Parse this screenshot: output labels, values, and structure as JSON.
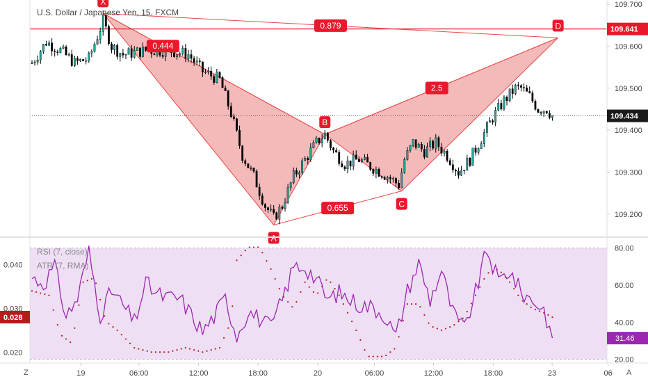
{
  "symbol_title": "U.S. Dollar / Japanese Yen, 15, FXCM",
  "price_axis_ticks": [
    "109.700",
    "109.600",
    "109.500",
    "109.400",
    "109.300",
    "109.200"
  ],
  "price_axis_values": [
    109.7,
    109.6,
    109.5,
    109.4,
    109.3,
    109.2
  ],
  "time_axis_labels": [
    "19",
    "06:00",
    "12:00",
    "18:00",
    "20",
    "06:00",
    "12:00",
    "18:00",
    "23",
    "06"
  ],
  "corner_labels": {
    "left": "Z",
    "right": "A"
  },
  "last_price_label": "109.434",
  "d_level_label": "109.641",
  "rsi_legend": "RSI (7, close)",
  "atr_legend": "ATR (7, RMA)",
  "rsi_axis_ticks": [
    "80.00",
    "60.00",
    "40.00",
    "20.00"
  ],
  "rsi_axis_values": [
    80,
    60,
    40,
    20
  ],
  "rsi_last_label": "31.46",
  "atr_axis_ticks": [
    "0.040",
    "0.030",
    "0.020"
  ],
  "atr_axis_values": [
    0.04,
    0.03,
    0.02
  ],
  "atr_last_label": "0.028",
  "colors": {
    "bull": "#26a69a",
    "pattern_fill": "#f0a0a0",
    "pattern_line": "#e84848",
    "label_bg": "#e8192c",
    "rsi_line": "#9c27b0",
    "rsi_band": "#e8d4f0",
    "atr_dots": "#b71c1c",
    "axis_text": "#444444"
  },
  "pattern": {
    "points": [
      {
        "label": "X",
        "time": 25,
        "price": 109.678
      },
      {
        "label": "A",
        "time": 85,
        "price": 109.174
      },
      {
        "label": "B",
        "time": 103,
        "price": 109.39
      },
      {
        "label": "C",
        "time": 130,
        "price": 109.255
      },
      {
        "label": "D",
        "time": 185,
        "price": 109.62
      }
    ],
    "ratios": [
      {
        "text": "0.879",
        "between": [
          "X",
          "D"
        ]
      },
      {
        "text": "0.444",
        "between": [
          "X",
          "B"
        ]
      },
      {
        "text": "0.655",
        "between": [
          "A",
          "C"
        ]
      },
      {
        "text": "2.5",
        "between": [
          "B",
          "D"
        ]
      }
    ]
  },
  "chart_data": {
    "type": "candlestick",
    "title": "U.S. Dollar / Japanese Yen, 15, FXCM",
    "price_ylim": [
      109.15,
      109.71
    ],
    "horizontal_level": 109.641,
    "last_close": 109.434,
    "ohlc_anchor_closes": [
      [
        0,
        109.56
      ],
      [
        5,
        109.61
      ],
      [
        10,
        109.59
      ],
      [
        15,
        109.56
      ],
      [
        20,
        109.57
      ],
      [
        25,
        109.66
      ],
      [
        28,
        109.6
      ],
      [
        32,
        109.58
      ],
      [
        40,
        109.59
      ],
      [
        48,
        109.59
      ],
      [
        55,
        109.58
      ],
      [
        60,
        109.54
      ],
      [
        66,
        109.52
      ],
      [
        70,
        109.44
      ],
      [
        74,
        109.34
      ],
      [
        78,
        109.29
      ],
      [
        82,
        109.22
      ],
      [
        85,
        109.19
      ],
      [
        88,
        109.22
      ],
      [
        92,
        109.29
      ],
      [
        96,
        109.33
      ],
      [
        100,
        109.37
      ],
      [
        103,
        109.39
      ],
      [
        106,
        109.35
      ],
      [
        110,
        109.32
      ],
      [
        115,
        109.33
      ],
      [
        120,
        109.31
      ],
      [
        125,
        109.29
      ],
      [
        129,
        109.27
      ],
      [
        131,
        109.33
      ],
      [
        134,
        109.37
      ],
      [
        138,
        109.35
      ],
      [
        142,
        109.37
      ],
      [
        146,
        109.34
      ],
      [
        150,
        109.3
      ],
      [
        154,
        109.33
      ],
      [
        158,
        109.38
      ],
      [
        162,
        109.43
      ],
      [
        166,
        109.47
      ],
      [
        170,
        109.5
      ],
      [
        172,
        109.5
      ],
      [
        175,
        109.48
      ],
      [
        178,
        109.45
      ],
      [
        181,
        109.45
      ],
      [
        183,
        109.434
      ]
    ],
    "rsi": {
      "name": "RSI (7, close)",
      "ylim": [
        18,
        84
      ],
      "band": [
        20,
        80
      ],
      "last": 31.46,
      "anchors": [
        [
          0,
          64
        ],
        [
          4,
          61
        ],
        [
          8,
          70
        ],
        [
          12,
          43
        ],
        [
          16,
          53
        ],
        [
          20,
          78
        ],
        [
          24,
          44
        ],
        [
          28,
          57
        ],
        [
          32,
          49
        ],
        [
          36,
          40
        ],
        [
          40,
          61
        ],
        [
          44,
          55
        ],
        [
          48,
          53
        ],
        [
          52,
          53
        ],
        [
          56,
          44
        ],
        [
          60,
          35
        ],
        [
          64,
          43
        ],
        [
          68,
          53
        ],
        [
          72,
          33
        ],
        [
          76,
          46
        ],
        [
          80,
          42
        ],
        [
          84,
          37
        ],
        [
          88,
          52
        ],
        [
          92,
          70
        ],
        [
          96,
          70
        ],
        [
          100,
          63
        ],
        [
          104,
          52
        ],
        [
          108,
          56
        ],
        [
          112,
          52
        ],
        [
          116,
          49
        ],
        [
          120,
          48
        ],
        [
          124,
          44
        ],
        [
          128,
          32
        ],
        [
          132,
          57
        ],
        [
          136,
          72
        ],
        [
          140,
          52
        ],
        [
          144,
          68
        ],
        [
          148,
          45
        ],
        [
          152,
          36
        ],
        [
          156,
          56
        ],
        [
          160,
          79
        ],
        [
          164,
          62
        ],
        [
          168,
          68
        ],
        [
          172,
          56
        ],
        [
          176,
          52
        ],
        [
          180,
          47
        ],
        [
          183,
          31.46
        ]
      ]
    },
    "atr": {
      "name": "ATR (7, RMA)",
      "ylim": [
        0.0175,
        0.0455
      ],
      "last": 0.028,
      "anchors": [
        [
          0,
          0.034
        ],
        [
          6,
          0.033
        ],
        [
          10,
          0.024
        ],
        [
          14,
          0.022
        ],
        [
          18,
          0.036
        ],
        [
          22,
          0.037
        ],
        [
          26,
          0.027
        ],
        [
          30,
          0.025
        ],
        [
          36,
          0.021
        ],
        [
          42,
          0.02
        ],
        [
          48,
          0.02
        ],
        [
          54,
          0.021
        ],
        [
          60,
          0.02
        ],
        [
          66,
          0.021
        ],
        [
          70,
          0.027
        ],
        [
          72,
          0.041
        ],
        [
          76,
          0.044
        ],
        [
          80,
          0.044
        ],
        [
          84,
          0.039
        ],
        [
          88,
          0.033
        ],
        [
          92,
          0.03
        ],
        [
          96,
          0.036
        ],
        [
          100,
          0.033
        ],
        [
          104,
          0.037
        ],
        [
          108,
          0.033
        ],
        [
          114,
          0.025
        ],
        [
          118,
          0.019
        ],
        [
          124,
          0.019
        ],
        [
          128,
          0.021
        ],
        [
          132,
          0.031
        ],
        [
          136,
          0.031
        ],
        [
          140,
          0.026
        ],
        [
          144,
          0.025
        ],
        [
          148,
          0.026
        ],
        [
          152,
          0.028
        ],
        [
          156,
          0.033
        ],
        [
          160,
          0.038
        ],
        [
          164,
          0.039
        ],
        [
          168,
          0.036
        ],
        [
          172,
          0.032
        ],
        [
          176,
          0.03
        ],
        [
          180,
          0.029
        ],
        [
          183,
          0.028
        ]
      ]
    }
  }
}
